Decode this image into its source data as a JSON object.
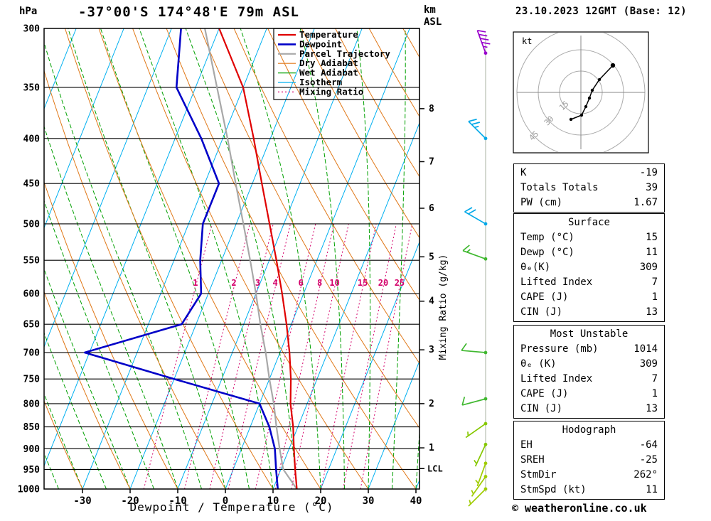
{
  "header": {
    "station": "-37°00'S 174°48'E 79m ASL",
    "datetime": "23.10.2023 12GMT (Base: 12)",
    "left_unit": "hPa",
    "right_unit_line1": "km",
    "right_unit_line2": "ASL"
  },
  "footer": {
    "credit": "© weatheronline.co.uk"
  },
  "axes": {
    "xlabel": "Dewpoint / Temperature (°C)",
    "right_axis_label": "Mixing Ratio (g/kg)",
    "lcl_label": "LCL"
  },
  "legend": [
    {
      "label": "Temperature",
      "color": "#e00000",
      "width": 2.2,
      "dash": ""
    },
    {
      "label": "Dewpoint",
      "color": "#0000c8",
      "width": 2.6,
      "dash": ""
    },
    {
      "label": "Parcel Trajectory",
      "color": "#a8a8a8",
      "width": 2.2,
      "dash": ""
    },
    {
      "label": "Dry Adiabat",
      "color": "#e07818",
      "width": 1.2,
      "dash": ""
    },
    {
      "label": "Wet Adiabat",
      "color": "#00a000",
      "width": 1.2,
      "dash": ""
    },
    {
      "label": "Isotherm",
      "color": "#00b0f0",
      "width": 1.2,
      "dash": ""
    },
    {
      "label": "Mixing Ratio",
      "color": "#d4006a",
      "width": 1.2,
      "dash": "2,3"
    }
  ],
  "panels": {
    "summary": {
      "rows": [
        [
          "K",
          "-19"
        ],
        [
          "Totals Totals",
          "39"
        ],
        [
          "PW (cm)",
          "1.67"
        ]
      ]
    },
    "surface": {
      "title": "Surface",
      "rows": [
        [
          "Temp (°C)",
          "15"
        ],
        [
          "Dewp (°C)",
          "11"
        ],
        [
          "θₑ(K)",
          "309"
        ],
        [
          "Lifted Index",
          "7"
        ],
        [
          "CAPE (J)",
          "1"
        ],
        [
          "CIN (J)",
          "13"
        ]
      ]
    },
    "most_unstable": {
      "title": "Most Unstable",
      "rows": [
        [
          "Pressure (mb)",
          "1014"
        ],
        [
          "θₑ (K)",
          "309"
        ],
        [
          "Lifted Index",
          "7"
        ],
        [
          "CAPE (J)",
          "1"
        ],
        [
          "CIN (J)",
          "13"
        ]
      ]
    },
    "hodograph": {
      "title": "Hodograph",
      "rows": [
        [
          "EH",
          "-64"
        ],
        [
          "SREH",
          "-25"
        ],
        [
          "StmDir",
          "262°"
        ],
        [
          "StmSpd (kt)",
          "11"
        ]
      ]
    }
  },
  "chart_data": {
    "type": "skewt-logp",
    "title": "-37°00'S 174°48'E 79m ASL",
    "xlabel": "Dewpoint / Temperature (°C)",
    "pressure_range": [
      300,
      1000
    ],
    "temp_axis_ticks": [
      -30,
      -20,
      -10,
      0,
      10,
      20,
      30,
      40
    ],
    "pressure_ticks": [
      300,
      350,
      400,
      450,
      500,
      550,
      600,
      650,
      700,
      750,
      800,
      850,
      900,
      950,
      1000
    ],
    "grid": {
      "isotherm_step_c": 10,
      "dry_adiabat_step_c": 10,
      "wet_adiabat_step_c": 5,
      "isotherm_color": "#00b0f0",
      "dry_adiabat_color": "#e07818",
      "wet_adiabat_color": "#00a000",
      "mixing_ratio_color": "#d4006a",
      "pressure_line_color": "#000000"
    },
    "mixing_ratio_lines_g_kg": [
      1,
      2,
      3,
      4,
      6,
      8,
      10,
      15,
      20,
      25
    ],
    "mixing_label_pressure": 590,
    "sounding": {
      "pressure": [
        1000,
        950,
        900,
        850,
        800,
        750,
        700,
        650,
        600,
        550,
        500,
        450,
        400,
        350,
        300
      ],
      "temperature": [
        15,
        13,
        11,
        9,
        6.5,
        4.5,
        2,
        -1,
        -4.5,
        -8.5,
        -13,
        -18,
        -23.5,
        -30,
        -40
      ],
      "dewpoint": [
        11,
        9,
        7,
        4,
        0,
        -20,
        -41,
        -23,
        -21.5,
        -24.5,
        -27,
        -27,
        -34.5,
        -44,
        -48
      ],
      "parcel": [
        15,
        10.5,
        8,
        5.5,
        3,
        0,
        -3,
        -6.5,
        -10,
        -14,
        -18.5,
        -23.5,
        -29,
        -35.5,
        -43
      ]
    },
    "surface_values": {
      "temp_c": 15,
      "dewp_c": 11
    },
    "km_ticks": [
      {
        "km": 8,
        "p": 370
      },
      {
        "km": 7,
        "p": 425
      },
      {
        "km": 6,
        "p": 480
      },
      {
        "km": 5,
        "p": 545
      },
      {
        "km": 4,
        "p": 612
      },
      {
        "km": 3,
        "p": 695
      },
      {
        "km": 2,
        "p": 800
      },
      {
        "km": 1,
        "p": 898
      }
    ],
    "lcl_pressure": 948,
    "wind_barbs": [
      {
        "p": 320,
        "speed_kt": 45,
        "dir_deg": 340,
        "color": "#9900cc"
      },
      {
        "p": 400,
        "speed_kt": 25,
        "dir_deg": 315,
        "color": "#00a8e8"
      },
      {
        "p": 500,
        "speed_kt": 20,
        "dir_deg": 300,
        "color": "#00a8e8"
      },
      {
        "p": 548,
        "speed_kt": 15,
        "dir_deg": 290,
        "color": "#40b830"
      },
      {
        "p": 700,
        "speed_kt": 10,
        "dir_deg": 275,
        "color": "#40b830"
      },
      {
        "p": 790,
        "speed_kt": 12,
        "dir_deg": 255,
        "color": "#40b830"
      },
      {
        "p": 843,
        "speed_kt": 7,
        "dir_deg": 235,
        "color": "#86c800"
      },
      {
        "p": 890,
        "speed_kt": 5,
        "dir_deg": 205,
        "color": "#86c800"
      },
      {
        "p": 935,
        "speed_kt": 9,
        "dir_deg": 200,
        "color": "#a0cc00"
      },
      {
        "p": 968,
        "speed_kt": 6,
        "dir_deg": 215,
        "color": "#a0cc00"
      },
      {
        "p": 1000,
        "speed_kt": 4,
        "dir_deg": 225,
        "color": "#a0cc00"
      }
    ],
    "hodograph": {
      "unit_label": "kt",
      "rings_kt": [
        15,
        30,
        45
      ],
      "ring_labels": [
        "15",
        "30",
        "45"
      ],
      "trace_uv_kt": [
        [
          -7,
          -19
        ],
        [
          0.5,
          -16
        ],
        [
          3.5,
          -10
        ],
        [
          6,
          -4
        ],
        [
          8,
          1.5
        ],
        [
          13,
          9
        ],
        [
          22.5,
          19
        ]
      ]
    }
  }
}
